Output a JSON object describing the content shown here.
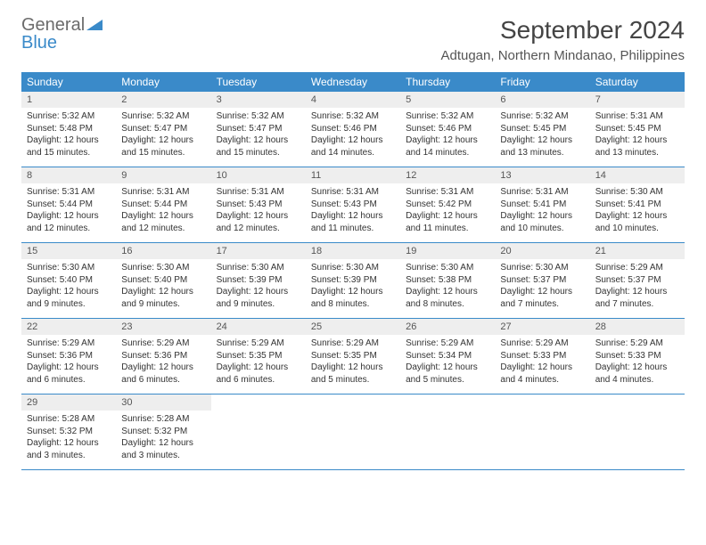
{
  "logo": {
    "text_a": "General",
    "text_b": "Blue"
  },
  "title": "September 2024",
  "location": "Adtugan, Northern Mindanao, Philippines",
  "colors": {
    "header_bar": "#3a8ac9",
    "daynum_bg": "#eeeeee",
    "text": "#333333",
    "logo_gray": "#6b6b6b",
    "logo_blue": "#3a8ac9"
  },
  "weekdays": [
    "Sunday",
    "Monday",
    "Tuesday",
    "Wednesday",
    "Thursday",
    "Friday",
    "Saturday"
  ],
  "days": [
    {
      "n": "1",
      "sr": "Sunrise: 5:32 AM",
      "ss": "Sunset: 5:48 PM",
      "d1": "Daylight: 12 hours",
      "d2": "and 15 minutes."
    },
    {
      "n": "2",
      "sr": "Sunrise: 5:32 AM",
      "ss": "Sunset: 5:47 PM",
      "d1": "Daylight: 12 hours",
      "d2": "and 15 minutes."
    },
    {
      "n": "3",
      "sr": "Sunrise: 5:32 AM",
      "ss": "Sunset: 5:47 PM",
      "d1": "Daylight: 12 hours",
      "d2": "and 15 minutes."
    },
    {
      "n": "4",
      "sr": "Sunrise: 5:32 AM",
      "ss": "Sunset: 5:46 PM",
      "d1": "Daylight: 12 hours",
      "d2": "and 14 minutes."
    },
    {
      "n": "5",
      "sr": "Sunrise: 5:32 AM",
      "ss": "Sunset: 5:46 PM",
      "d1": "Daylight: 12 hours",
      "d2": "and 14 minutes."
    },
    {
      "n": "6",
      "sr": "Sunrise: 5:32 AM",
      "ss": "Sunset: 5:45 PM",
      "d1": "Daylight: 12 hours",
      "d2": "and 13 minutes."
    },
    {
      "n": "7",
      "sr": "Sunrise: 5:31 AM",
      "ss": "Sunset: 5:45 PM",
      "d1": "Daylight: 12 hours",
      "d2": "and 13 minutes."
    },
    {
      "n": "8",
      "sr": "Sunrise: 5:31 AM",
      "ss": "Sunset: 5:44 PM",
      "d1": "Daylight: 12 hours",
      "d2": "and 12 minutes."
    },
    {
      "n": "9",
      "sr": "Sunrise: 5:31 AM",
      "ss": "Sunset: 5:44 PM",
      "d1": "Daylight: 12 hours",
      "d2": "and 12 minutes."
    },
    {
      "n": "10",
      "sr": "Sunrise: 5:31 AM",
      "ss": "Sunset: 5:43 PM",
      "d1": "Daylight: 12 hours",
      "d2": "and 12 minutes."
    },
    {
      "n": "11",
      "sr": "Sunrise: 5:31 AM",
      "ss": "Sunset: 5:43 PM",
      "d1": "Daylight: 12 hours",
      "d2": "and 11 minutes."
    },
    {
      "n": "12",
      "sr": "Sunrise: 5:31 AM",
      "ss": "Sunset: 5:42 PM",
      "d1": "Daylight: 12 hours",
      "d2": "and 11 minutes."
    },
    {
      "n": "13",
      "sr": "Sunrise: 5:31 AM",
      "ss": "Sunset: 5:41 PM",
      "d1": "Daylight: 12 hours",
      "d2": "and 10 minutes."
    },
    {
      "n": "14",
      "sr": "Sunrise: 5:30 AM",
      "ss": "Sunset: 5:41 PM",
      "d1": "Daylight: 12 hours",
      "d2": "and 10 minutes."
    },
    {
      "n": "15",
      "sr": "Sunrise: 5:30 AM",
      "ss": "Sunset: 5:40 PM",
      "d1": "Daylight: 12 hours",
      "d2": "and 9 minutes."
    },
    {
      "n": "16",
      "sr": "Sunrise: 5:30 AM",
      "ss": "Sunset: 5:40 PM",
      "d1": "Daylight: 12 hours",
      "d2": "and 9 minutes."
    },
    {
      "n": "17",
      "sr": "Sunrise: 5:30 AM",
      "ss": "Sunset: 5:39 PM",
      "d1": "Daylight: 12 hours",
      "d2": "and 9 minutes."
    },
    {
      "n": "18",
      "sr": "Sunrise: 5:30 AM",
      "ss": "Sunset: 5:39 PM",
      "d1": "Daylight: 12 hours",
      "d2": "and 8 minutes."
    },
    {
      "n": "19",
      "sr": "Sunrise: 5:30 AM",
      "ss": "Sunset: 5:38 PM",
      "d1": "Daylight: 12 hours",
      "d2": "and 8 minutes."
    },
    {
      "n": "20",
      "sr": "Sunrise: 5:30 AM",
      "ss": "Sunset: 5:37 PM",
      "d1": "Daylight: 12 hours",
      "d2": "and 7 minutes."
    },
    {
      "n": "21",
      "sr": "Sunrise: 5:29 AM",
      "ss": "Sunset: 5:37 PM",
      "d1": "Daylight: 12 hours",
      "d2": "and 7 minutes."
    },
    {
      "n": "22",
      "sr": "Sunrise: 5:29 AM",
      "ss": "Sunset: 5:36 PM",
      "d1": "Daylight: 12 hours",
      "d2": "and 6 minutes."
    },
    {
      "n": "23",
      "sr": "Sunrise: 5:29 AM",
      "ss": "Sunset: 5:36 PM",
      "d1": "Daylight: 12 hours",
      "d2": "and 6 minutes."
    },
    {
      "n": "24",
      "sr": "Sunrise: 5:29 AM",
      "ss": "Sunset: 5:35 PM",
      "d1": "Daylight: 12 hours",
      "d2": "and 6 minutes."
    },
    {
      "n": "25",
      "sr": "Sunrise: 5:29 AM",
      "ss": "Sunset: 5:35 PM",
      "d1": "Daylight: 12 hours",
      "d2": "and 5 minutes."
    },
    {
      "n": "26",
      "sr": "Sunrise: 5:29 AM",
      "ss": "Sunset: 5:34 PM",
      "d1": "Daylight: 12 hours",
      "d2": "and 5 minutes."
    },
    {
      "n": "27",
      "sr": "Sunrise: 5:29 AM",
      "ss": "Sunset: 5:33 PM",
      "d1": "Daylight: 12 hours",
      "d2": "and 4 minutes."
    },
    {
      "n": "28",
      "sr": "Sunrise: 5:29 AM",
      "ss": "Sunset: 5:33 PM",
      "d1": "Daylight: 12 hours",
      "d2": "and 4 minutes."
    },
    {
      "n": "29",
      "sr": "Sunrise: 5:28 AM",
      "ss": "Sunset: 5:32 PM",
      "d1": "Daylight: 12 hours",
      "d2": "and 3 minutes."
    },
    {
      "n": "30",
      "sr": "Sunrise: 5:28 AM",
      "ss": "Sunset: 5:32 PM",
      "d1": "Daylight: 12 hours",
      "d2": "and 3 minutes."
    }
  ]
}
